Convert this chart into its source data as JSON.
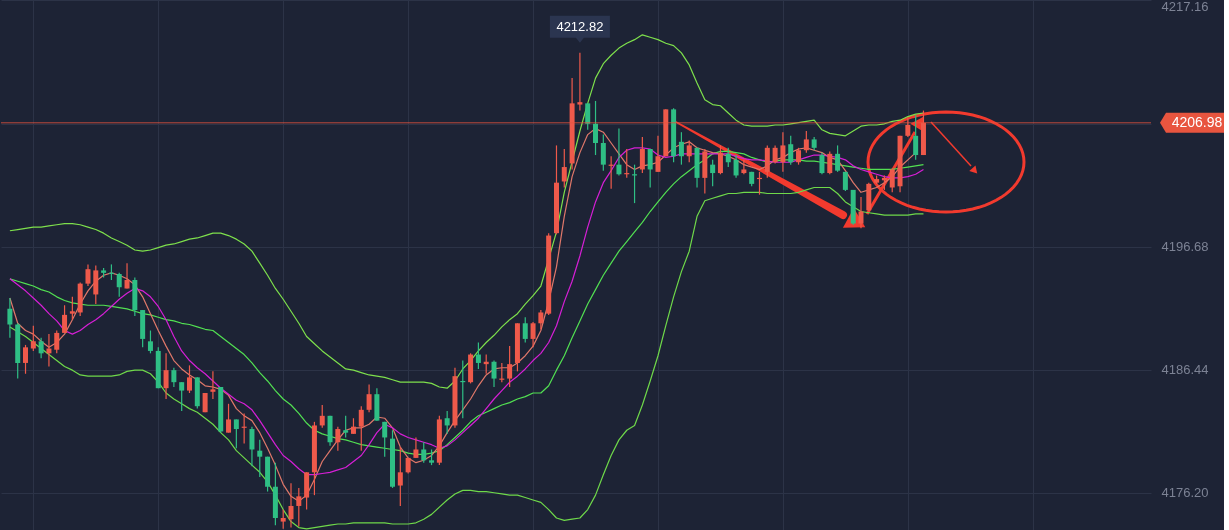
{
  "chart_data": {
    "type": "candlestick",
    "categories": [
      null,
      null,
      null,
      null,
      null,
      null,
      null,
      null,
      null,
      null,
      null,
      null,
      null,
      null,
      null,
      null,
      null,
      null,
      null,
      null,
      null,
      null,
      null,
      null,
      null,
      null,
      null,
      null,
      null,
      null,
      null,
      null,
      null,
      null,
      null,
      null,
      null,
      null,
      null,
      null,
      null,
      null,
      null,
      null,
      null,
      null,
      null,
      null,
      null,
      null,
      null,
      null,
      null,
      null,
      null,
      null,
      null,
      null,
      null,
      null,
      null,
      null,
      null,
      null,
      null,
      null,
      null,
      null,
      null,
      null,
      null,
      null,
      null,
      null,
      null,
      null,
      null,
      null,
      null,
      null,
      null,
      null,
      null,
      null,
      null,
      null,
      null,
      null,
      null,
      null,
      null,
      null,
      null,
      null,
      null,
      null,
      null,
      null,
      null,
      null,
      null,
      null,
      null,
      null,
      null,
      null,
      null,
      null,
      null,
      null,
      null,
      null,
      null,
      null,
      null,
      null,
      null,
      null
    ],
    "ohlc": [
      [
        4191.5,
        4192.4,
        4189.1,
        4190.2
      ],
      [
        4190.2,
        4190.3,
        4185.7,
        4187.0
      ],
      [
        4187.0,
        4188.5,
        4186.1,
        4188.3
      ],
      [
        4188.2,
        4190.1,
        4188.0,
        4188.8
      ],
      [
        4188.8,
        4189.1,
        4187.4,
        4187.8
      ],
      [
        4187.8,
        4189.4,
        4186.7,
        4188.2
      ],
      [
        4188.1,
        4189.7,
        4187.8,
        4189.5
      ],
      [
        4189.5,
        4191.8,
        4189.5,
        4191.0
      ],
      [
        4191.1,
        4192.5,
        4190.6,
        4191.3
      ],
      [
        4191.2,
        4193.7,
        4190.9,
        4193.6
      ],
      [
        4193.6,
        4195.2,
        4193.4,
        4194.8
      ],
      [
        4192.7,
        4195.1,
        4191.9,
        4194.7
      ],
      [
        4194.7,
        4194.9,
        4194.1,
        4194.5
      ],
      [
        4194.5,
        4195.2,
        4193.9,
        4194.4
      ],
      [
        4194.4,
        4194.5,
        4192.5,
        4193.3
      ],
      [
        4193.2,
        4195.3,
        4193.2,
        4193.9
      ],
      [
        4193.9,
        4194.1,
        4190.9,
        4191.4
      ],
      [
        4191.4,
        4191.4,
        4188.3,
        4189.0
      ],
      [
        4188.8,
        4189.7,
        4187.8,
        4188.0
      ],
      [
        4188.0,
        4188.3,
        4184.9,
        4184.9
      ],
      [
        4184.9,
        4187.8,
        4184.0,
        4186.4
      ],
      [
        4186.4,
        4186.6,
        4185.0,
        4185.4
      ],
      [
        4185.4,
        4185.4,
        4183.0,
        4184.7
      ],
      [
        4184.7,
        4186.8,
        4184.5,
        4185.8
      ],
      [
        4185.8,
        4185.8,
        4183.2,
        4183.4
      ],
      [
        4182.9,
        4184.5,
        4182.9,
        4184.5
      ],
      [
        4184.6,
        4186.3,
        4184.0,
        4184.8
      ],
      [
        4185.0,
        4185.0,
        4181.2,
        4181.3
      ],
      [
        4181.2,
        4183.6,
        4181.2,
        4182.3
      ],
      [
        4182.3,
        4182.3,
        4179.9,
        4181.5
      ],
      [
        4181.6,
        4182.8,
        4180.3,
        4181.7
      ],
      [
        4181.5,
        4181.7,
        4178.4,
        4179.8
      ],
      [
        4179.7,
        4180.6,
        4177.5,
        4179.2
      ],
      [
        4179.2,
        4179.2,
        4176.3,
        4176.7
      ],
      [
        4176.7,
        4178.7,
        4173.5,
        4174.1
      ],
      [
        4173.8,
        4174.8,
        4173.2,
        4174.1
      ],
      [
        4174.0,
        4177.0,
        4173.3,
        4175.1
      ],
      [
        4175.1,
        4176.6,
        4173.4,
        4175.9
      ],
      [
        4175.8,
        4177.9,
        4174.8,
        4177.9
      ],
      [
        4177.9,
        4182.1,
        4176.0,
        4181.8
      ],
      [
        4181.8,
        4183.5,
        4181.6,
        4182.6
      ],
      [
        4182.6,
        4182.6,
        4180.1,
        4180.4
      ],
      [
        4180.4,
        4181.7,
        4179.7,
        4181.5
      ],
      [
        4181.4,
        4182.6,
        4180.8,
        4181.2
      ],
      [
        4181.1,
        4182.4,
        4181.1,
        4181.7
      ],
      [
        4181.7,
        4183.4,
        4179.7,
        4183.1
      ],
      [
        4183.1,
        4185.2,
        4182.9,
        4184.4
      ],
      [
        4184.4,
        4184.9,
        4182.2,
        4182.2
      ],
      [
        4182.1,
        4182.1,
        4179.2,
        4180.8
      ],
      [
        4180.7,
        4181.4,
        4176.6,
        4176.7
      ],
      [
        4176.8,
        4180.0,
        4175.1,
        4177.9
      ],
      [
        4177.9,
        4179.1,
        4177.8,
        4179.1
      ],
      [
        4179.1,
        4180.8,
        4179.1,
        4179.8
      ],
      [
        4179.8,
        4180.4,
        4178.7,
        4178.9
      ],
      [
        4178.9,
        4179.8,
        4178.5,
        4178.7
      ],
      [
        4178.7,
        4182.6,
        4178.5,
        4182.3
      ],
      [
        4182.4,
        4183.0,
        4181.1,
        4181.8
      ],
      [
        4181.8,
        4186.6,
        4181.6,
        4185.9
      ],
      [
        4185.5,
        4187.2,
        4182.4,
        4185.4
      ],
      [
        4185.4,
        4187.8,
        4185.3,
        4187.7
      ],
      [
        4187.7,
        4188.7,
        4186.5,
        4187.0
      ],
      [
        4186.9,
        4187.7,
        4186.1,
        4187.1
      ],
      [
        4187.1,
        4187.2,
        4185.0,
        4185.7
      ],
      [
        4185.6,
        4187.0,
        4185.4,
        4185.7
      ],
      [
        4185.7,
        4188.4,
        4185.0,
        4186.9
      ],
      [
        4187.0,
        4190.3,
        4186.3,
        4190.3
      ],
      [
        4190.3,
        4190.8,
        4188.7,
        4189.0
      ],
      [
        4189.0,
        4190.4,
        4188.3,
        4190.3
      ],
      [
        4190.3,
        4191.4,
        4189.8,
        4191.2
      ],
      [
        4191.1,
        4197.8,
        4191.0,
        4197.6
      ],
      [
        4197.8,
        4205.1,
        4197.7,
        4202.0
      ],
      [
        4202.1,
        4204.8,
        4201.6,
        4203.3
      ],
      [
        4203.6,
        4210.7,
        4203.1,
        4208.6
      ],
      [
        4208.5,
        4212.82,
        4208.0,
        4208.7
      ],
      [
        4208.6,
        4208.6,
        4206.4,
        4206.9
      ],
      [
        4206.9,
        4208.8,
        4204.3,
        4205.3
      ],
      [
        4205.3,
        4206.0,
        4203.0,
        4203.5
      ],
      [
        4203.4,
        4204.2,
        4201.5,
        4203.5
      ],
      [
        4203.5,
        4206.5,
        4202.6,
        4202.7
      ],
      [
        4202.7,
        4204.8,
        4202.4,
        4202.8
      ],
      [
        4202.7,
        4203.5,
        4200.3,
        4202.6
      ],
      [
        4203.1,
        4205.8,
        4202.8,
        4204.8
      ],
      [
        4204.8,
        4204.8,
        4201.6,
        4203.1
      ],
      [
        4202.9,
        4205.9,
        4202.9,
        4204.2
      ],
      [
        4204.2,
        4208.1,
        4204.2,
        4208.1
      ],
      [
        4208.1,
        4208.2,
        4203.7,
        4204.2
      ],
      [
        4205.4,
        4206.2,
        4203.5,
        4204.2
      ],
      [
        4204.2,
        4205.5,
        4203.7,
        4205.1
      ],
      [
        4204.9,
        4204.9,
        4201.6,
        4202.4
      ],
      [
        4202.4,
        4204.8,
        4201.1,
        4204.6
      ],
      [
        4203.5,
        4203.9,
        4201.7,
        4202.8
      ],
      [
        4202.8,
        4205.1,
        4202.7,
        4204.5
      ],
      [
        4204.4,
        4204.9,
        4203.3,
        4203.7
      ],
      [
        4203.9,
        4204.3,
        4202.4,
        4202.6
      ],
      [
        4202.8,
        4203.9,
        4202.7,
        4203.1
      ],
      [
        4202.9,
        4202.9,
        4201.7,
        4201.9
      ],
      [
        4202.3,
        4202.9,
        4201.0,
        4202.4
      ],
      [
        4202.9,
        4205.1,
        4202.4,
        4204.9
      ],
      [
        4203.7,
        4205.1,
        4203.6,
        4204.9
      ],
      [
        4203.7,
        4206.2,
        4202.9,
        4205.1
      ],
      [
        4205.2,
        4205.9,
        4203.5,
        4203.7
      ],
      [
        4203.7,
        4204.9,
        4203.5,
        4204.7
      ],
      [
        4204.7,
        4206.3,
        4204.5,
        4205.6
      ],
      [
        4205.6,
        4205.8,
        4204.7,
        4204.9
      ],
      [
        4204.3,
        4204.5,
        4202.7,
        4202.8
      ],
      [
        4202.8,
        4204.6,
        4202.7,
        4204.4
      ],
      [
        4204.4,
        4205.1,
        4202.9,
        4203.0
      ],
      [
        4202.9,
        4202.9,
        4201.3,
        4201.4
      ],
      [
        4201.4,
        4201.4,
        4198.5,
        4198.6
      ],
      [
        4198.6,
        4200.8,
        4198.2,
        4199.6
      ],
      [
        4199.7,
        4202.0,
        4199.6,
        4201.9
      ],
      [
        4202.0,
        4202.6,
        4201.9,
        4202.3
      ],
      [
        4202.2,
        4202.6,
        4201.4,
        4202.4
      ],
      [
        4201.6,
        4203.2,
        4201.2,
        4203.1
      ],
      [
        4201.7,
        4205.9,
        4201.2,
        4205.9
      ],
      [
        4205.9,
        4207.4,
        4205.8,
        4206.8
      ],
      [
        4205.9,
        4207.6,
        4203.9,
        4204.3
      ],
      [
        4204.3,
        4208.0,
        4204.3,
        4206.98
      ]
    ],
    "series": [
      {
        "type": "line",
        "color": "#7ee04c",
        "values": [
          4198.0,
          4198.1,
          4198.2,
          4198.3,
          4198.3,
          4198.4,
          4198.5,
          4198.6,
          4198.6,
          4198.5,
          4198.3,
          4198.1,
          4197.8,
          4197.4,
          4197.1,
          4196.8,
          4196.4,
          4196.3,
          4196.4,
          4196.6,
          4196.8,
          4196.9,
          4197.1,
          4197.3,
          4197.4,
          4197.6,
          4197.8,
          4197.8,
          4197.6,
          4197.3,
          4196.9,
          4196.3,
          4195.3,
          4194.3,
          4193.2,
          4192.3,
          4191.3,
          4190.3,
          4189.2,
          4188.6,
          4188.0,
          4187.5,
          4187.0,
          4186.5,
          4186.4,
          4186.2,
          4186.0,
          4185.9,
          4185.8,
          4185.6,
          4185.4,
          4185.4,
          4185.4,
          4185.4,
          4185.3,
          4185.0,
          4184.9,
          4185.5,
          4186.5,
          4187.2,
          4188.0,
          4188.7,
          4189.3,
          4190.0,
          4190.6,
          4191.1,
          4191.9,
          4192.6,
          4193.4,
          null,
          4197.9,
          4201.2,
          null,
          4206.3,
          4208.6,
          4210.7,
          4211.9,
          4212.6,
          4213.2,
          4213.6,
          4213.9,
          4214.3,
          4214.1,
          4213.9,
          4213.6,
          4213.4,
          4212.8,
          4211.8,
          4210.3,
          4208.9,
          4208.5,
          4208.4,
          4207.8,
          4207.2,
          4206.8,
          4206.7,
          4206.7,
          4206.7,
          4206.8,
          4206.8,
          4206.9,
          4207.0,
          4207.1,
          4207.2,
          4206.4,
          4206.1,
          4206.0,
          4205.9,
          4206.3,
          4206.7,
          4206.8,
          4206.8,
          4206.9,
          4207.1,
          4207.2,
          4207.5,
          4207.7,
          4207.8
        ]
      },
      {
        "type": "line",
        "color": "#52e052",
        "values": [
          4194.0,
          4193.8,
          4193.6,
          4193.4,
          4193.1,
          4192.9,
          4192.5,
          4192.2,
          4192.0,
          4191.9,
          4191.8,
          4191.8,
          4191.8,
          4191.7,
          4191.6,
          4191.5,
          4191.3,
          4191.1,
          4191.0,
          4190.8,
          4190.6,
          4190.5,
          4190.3,
          4190.2,
          4190.0,
          4189.8,
          4189.7,
          4189.2,
          4188.7,
          4188.2,
          4187.7,
          4187.0,
          4186.2,
          4185.5,
          4184.7,
          4184.0,
          4183.5,
          4182.8,
          4182.0,
          4181.4,
          4181.1,
          4180.9,
          4180.7,
          4180.6,
          4180.4,
          4180.2,
          4180.1,
          4180.0,
          4179.9,
          4179.8,
          4179.7,
          4179.5,
          4179.4,
          4179.4,
          4179.5,
          4179.7,
          4180.2,
          4180.8,
          4181.4,
          4182.1,
          4182.6,
          4182.9,
          4183.2,
          4183.5,
          4183.7,
          4184.0,
          4184.2,
          4184.5,
          4184.5,
          4185.1,
          4186.4,
          4187.6,
          4189.1,
          4190.5,
          4191.9,
          4193.1,
          4194.3,
          4195.3,
          4196.3,
          4197.1,
          4197.9,
          4198.7,
          4199.6,
          4200.4,
          4201.2,
          4201.9,
          4202.5,
          4203.0,
          4203.5,
          4203.9,
          4204.4,
          4204.6,
          4204.6,
          4204.5,
          4204.4,
          4204.1,
          4203.9,
          4203.7,
          4203.8,
          4203.9,
          4203.9,
          4203.9,
          4203.8,
          4203.8,
          4203.7,
          4203.6,
          4203.5,
          4203.4,
          4203.3,
          4203.2,
          4203.1,
          4203.1,
          4203.1,
          4203.1,
          4203.2,
          4203.3,
          4203.4,
          4203.5
        ]
      },
      {
        "type": "line",
        "color": "#6fd94a",
        "values": [
          4190.0,
          4189.6,
          4189.2,
          4188.7,
          4188.2,
          4187.7,
          4187.2,
          4186.7,
          4186.4,
          4186.0,
          4185.9,
          4185.9,
          4185.9,
          4185.9,
          4186.0,
          4186.3,
          4186.4,
          4186.4,
          4186.1,
          4185.4,
          4184.5,
          4184.0,
          4183.6,
          4183.2,
          4182.9,
          4182.4,
          4181.9,
          4181.2,
          4180.6,
          4179.7,
          4179.1,
          4178.5,
          4177.9,
          4177.1,
          4176.0,
          4174.8,
          4173.8,
          4173.3,
          4173.2,
          4173.3,
          4173.4,
          4173.5,
          4173.6,
          4173.6,
          4173.7,
          4173.7,
          4173.7,
          4173.7,
          4173.7,
          4173.6,
          4173.6,
          4173.6,
          4173.7,
          4174.0,
          4174.4,
          4175.0,
          4175.6,
          4176.1,
          4176.4,
          4176.4,
          4176.3,
          4176.3,
          4176.2,
          4176.1,
          4176.0,
          4176.0,
          4175.8,
          4175.6,
          4175.4,
          4174.8,
          4174.1,
          4173.9,
          4174.0,
          4174.1,
          4174.8,
          4176.0,
          4177.7,
          4179.3,
          4180.6,
          4181.4,
          4181.8,
          4183.5,
          4185.5,
          4187.6,
          4190.1,
          4192.5,
          4194.6,
          4196.3,
          4199.2,
          4200.5,
          4200.7,
          4200.9,
          4201.1,
          4201.1,
          4201.2,
          4201.2,
          4201.2,
          4201.1,
          4201.1,
          4201.1,
          4201.1,
          4201.2,
          4201.4,
          4201.6,
          4201.6,
          4201.6,
          4201.1,
          4200.4,
          4200.0,
          4199.6,
          4199.5,
          4199.4,
          4199.3,
          4199.3,
          4199.3,
          4199.3,
          4199.4,
          4199.4
        ]
      },
      {
        "type": "line",
        "color": "#e0786a",
        "values": [
          4192.4,
          4190.3,
          4189.7,
          4189.4,
          4188.8,
          4188.3,
          4188.7,
          4189.4,
          4190.6,
          4191.9,
          4193.0,
          4193.8,
          4194.3,
          4194.5,
          4194.3,
          4194.0,
          4193.5,
          4192.5,
          4191.1,
          4189.7,
          4188.4,
          4187.2,
          4186.5,
          4186.0,
          4185.6,
          4185.1,
          4185.0,
          4184.8,
          4184.3,
          4183.2,
          4182.6,
          4182.2,
          4181.2,
          4179.9,
          4178.5,
          4176.9,
          4175.9,
          4175.5,
          4176.0,
          4177.3,
          4178.8,
          4179.7,
          4180.6,
          4181.4,
          4181.6,
          4181.6,
          4181.9,
          4182.5,
          4182.4,
          4181.6,
          4180.0,
          4179.1,
          4178.7,
          4178.9,
          4179.3,
          4180.1,
          4181.2,
          4182.2,
          4183.1,
          4184.0,
          4185.1,
          4186.0,
          4186.5,
          4186.6,
          4186.6,
          4187.0,
          4187.6,
          4188.4,
          4189.7,
          4192.1,
          4195.0,
          4199.2,
          4202.5,
          4204.5,
          4206.0,
          4206.5,
          4206.2,
          4205.3,
          4204.4,
          4203.5,
          4203.1,
          4203.4,
          4203.5,
          4203.7,
          4204.3,
          4204.9,
          4205.2,
          4205.4,
          4204.9,
          4204.7,
          4204.5,
          4204.4,
          4204.2,
          4203.9,
          4203.5,
          4203.3,
          4203.1,
          4203.4,
          4203.9,
          4204.1,
          4204.5,
          4204.8,
          4204.9,
          4204.7,
          4204.5,
          4204.1,
          4203.9,
          4203.0,
          4202.0,
          4201.2,
          4201.4,
          4201.6,
          4202.0,
          4202.5,
          4203.3,
          4203.9,
          4204.5,
          null
        ]
      },
      {
        "type": "line",
        "color": "#d61fd6",
        "values": [
          4194.0,
          4193.5,
          4193.0,
          4192.4,
          4191.8,
          4191.1,
          4190.5,
          4189.7,
          4189.4,
          4189.7,
          4190.2,
          4190.6,
          4191.1,
          4191.7,
          4192.3,
          4192.8,
          4193.2,
          4193.0,
          4192.5,
          4191.7,
          4190.6,
          4189.2,
          4188.0,
          4187.2,
          4186.6,
          4186.1,
          4185.5,
          4184.9,
          4184.4,
          4183.9,
          4183.6,
          4183.1,
          4182.2,
          4181.2,
          4180.2,
          4179.3,
          4178.8,
          4178.2,
          4177.7,
          4177.7,
          4177.8,
          4177.9,
          4178.1,
          4178.3,
          4178.8,
          4179.3,
          4180.2,
          4181.2,
          4181.9,
          4181.6,
          4181.1,
          4180.8,
          4180.6,
          4180.4,
          4180.2,
          4179.9,
          4180.1,
          4180.6,
          4181.2,
          4181.8,
          4182.4,
          4183.2,
          4184.0,
          4184.7,
          4185.4,
          4185.9,
          4186.5,
          4187.2,
          4187.8,
          4188.7,
          4190.1,
          4192.1,
          4193.8,
          4195.9,
          4198.3,
          4200.4,
          4202.0,
          4203.0,
          4204.1,
          4204.7,
          4204.9,
          4204.9,
          4204.8,
          4204.3,
          4204.1,
          4204.2,
          4204.4,
          4204.4,
          4204.4,
          4204.4,
          4204.4,
          4204.4,
          4204.4,
          null,
          4204.0,
          4203.9,
          4203.9,
          4203.8,
          4203.7,
          4203.7,
          4203.7,
          4203.9,
          4204.1,
          4204.3,
          4204.3,
          4204.2,
          4204.1,
          4203.9,
          4203.4,
          4203.1,
          4202.9,
          4202.7,
          4202.5,
          4202.4,
          4202.4,
          4202.5,
          4202.7,
          4203.1
        ]
      }
    ],
    "ylim": [
      4173.1,
      4217.2
    ],
    "yticks": [
      {
        "value": 4176.2,
        "label": "4176.20"
      },
      {
        "value": 4186.44,
        "label": "4186.44"
      },
      {
        "value": 4196.68,
        "label": "4196.68"
      },
      {
        "value": 4206.92,
        "label": null
      },
      {
        "value": 4217.16,
        "label": "4217.16"
      }
    ],
    "grid": true,
    "ref_lines": [
      {
        "axis": "y",
        "value": 4206.98,
        "label": "4206.98",
        "color": "#e8553f"
      }
    ],
    "annotations": [
      {
        "text": "4212.82",
        "y": 4212.82
      }
    ]
  }
}
